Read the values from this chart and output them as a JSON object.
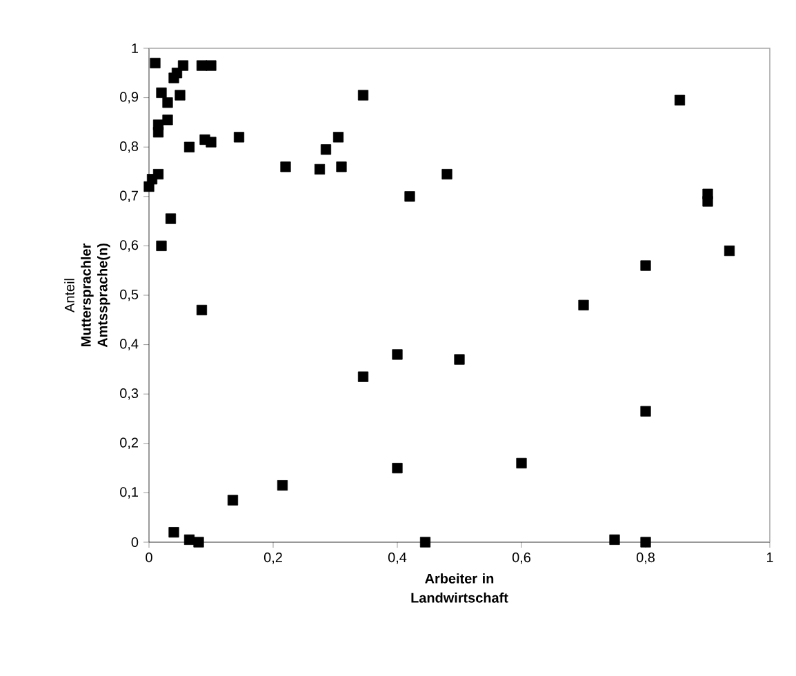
{
  "chart_data": {
    "type": "scatter",
    "xlabel": "**Arbeiter in Landwirtschaft**",
    "ylabel": "Anteil **Muttersprachler Amtssprache(n)**",
    "marker": "square",
    "xlim": [
      0,
      1
    ],
    "ylim": [
      0,
      1
    ],
    "xticks": [
      0,
      {
        "value": 0.2,
        "label": "0,2"
      },
      {
        "value": 0.4,
        "label": "0,4"
      },
      {
        "value": 0.6,
        "label": "0,6"
      },
      {
        "value": 0.8,
        "label": "0,8"
      },
      1
    ],
    "yticks": [
      0,
      {
        "value": 0.1,
        "label": "0,1"
      },
      {
        "value": 0.2,
        "label": "0,2"
      },
      {
        "value": 0.3,
        "label": "0,3"
      },
      {
        "value": 0.4,
        "label": "0,4"
      },
      {
        "value": 0.5,
        "label": "0,5"
      },
      {
        "value": 0.6,
        "label": "0,6"
      },
      {
        "value": 0.7,
        "label": "0,7"
      },
      {
        "value": 0.8,
        "label": "0,8"
      },
      {
        "value": 0.9,
        "label": "0,9"
      },
      1
    ],
    "series": [
      {
        "color": "#000000",
        "x": [
          0.0,
          0.005,
          0.01,
          0.015,
          0.015,
          0.015,
          0.02,
          0.02,
          0.03,
          0.03,
          0.035,
          0.04,
          0.045,
          0.05,
          0.055,
          0.065,
          0.085,
          0.09,
          0.1,
          0.1,
          0.145,
          0.22,
          0.275,
          0.285,
          0.305,
          0.31,
          0.345,
          0.42,
          0.48,
          0.855,
          0.9,
          0.9,
          0.935,
          0.8,
          0.7,
          0.5,
          0.4,
          0.345,
          0.8,
          0.6,
          0.4,
          0.215,
          0.135,
          0.04,
          0.065,
          0.08,
          0.085,
          0.445,
          0.75,
          0.8
        ],
        "values": [
          0.72,
          0.735,
          0.97,
          0.745,
          0.83,
          0.845,
          0.91,
          0.6,
          0.855,
          0.89,
          0.655,
          0.94,
          0.95,
          0.905,
          0.965,
          0.8,
          0.965,
          0.815,
          0.965,
          0.81,
          0.82,
          0.76,
          0.755,
          0.795,
          0.82,
          0.76,
          0.905,
          0.7,
          0.745,
          0.895,
          0.705,
          0.69,
          0.59,
          0.56,
          0.48,
          0.37,
          0.38,
          0.335,
          0.265,
          0.16,
          0.15,
          0.115,
          0.085,
          0.02,
          0.005,
          0.0,
          0.47,
          0.0,
          0.005,
          0.0
        ]
      }
    ]
  }
}
